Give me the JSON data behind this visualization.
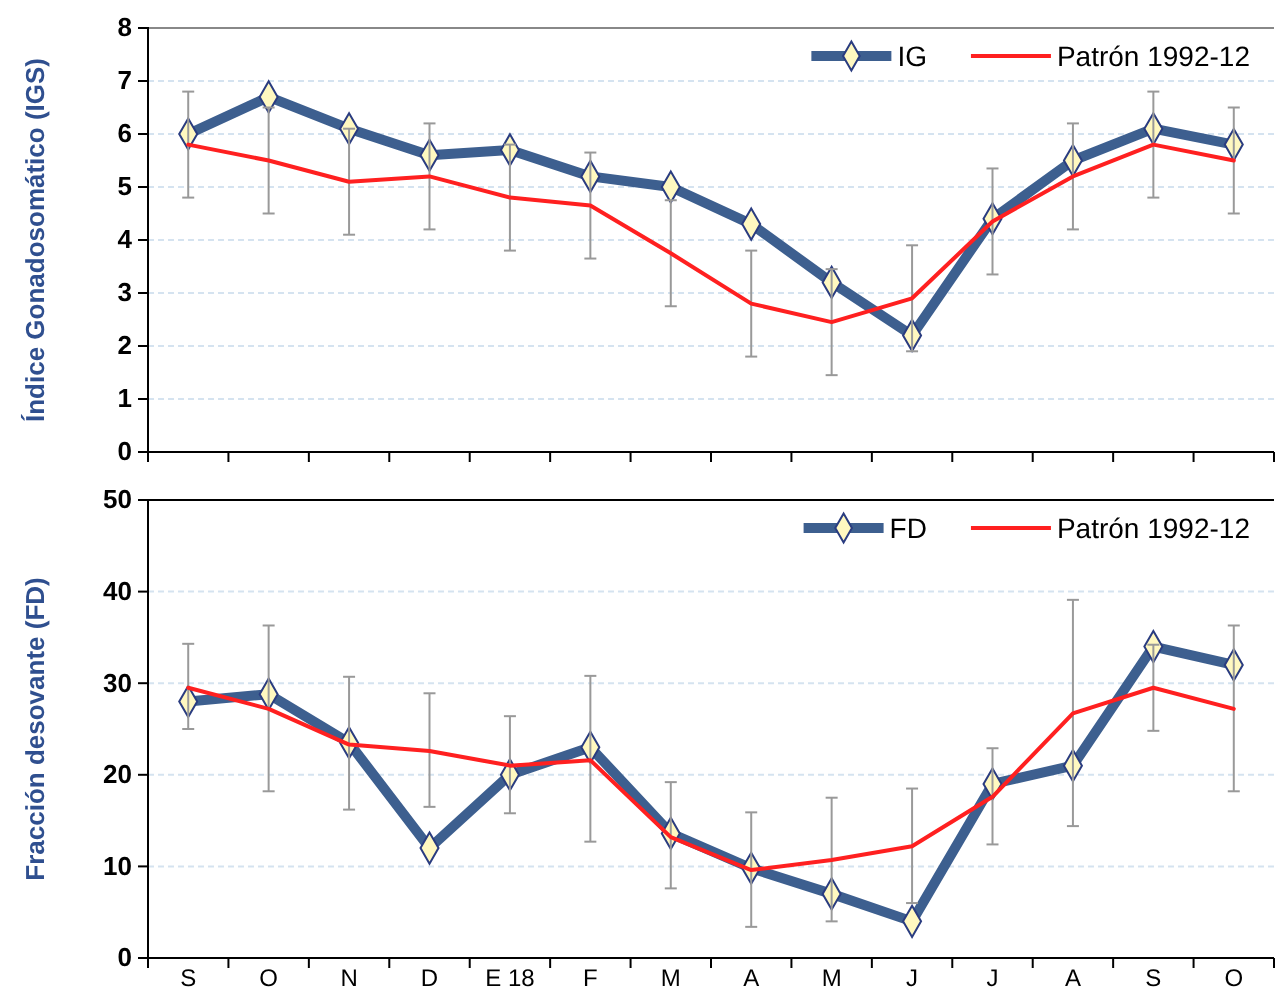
{
  "chart_data": [
    {
      "type": "line",
      "ylabel": "Índice Gonadosomático (IGS)",
      "categories": [
        null,
        null,
        null,
        null,
        null,
        null,
        null,
        null,
        null,
        null,
        null,
        null,
        null,
        null
      ],
      "ylim": [
        0,
        8
      ],
      "yticks": [
        0,
        1,
        2,
        3,
        4,
        5,
        6,
        7,
        8
      ],
      "grid": "y",
      "legend": "top right",
      "tick_labels": "y",
      "series": [
        {
          "name": "IG",
          "color": "#3d5f8f",
          "marker": "diamond",
          "values": [
            6.0,
            6.7,
            6.1,
            5.6,
            5.7,
            5.2,
            5.0,
            4.3,
            3.2,
            2.2,
            4.4,
            5.5,
            6.1,
            5.8
          ]
        },
        {
          "name": "Patrón 1992-12",
          "color": "#ff2020",
          "marker": "none",
          "values": [
            5.8,
            5.5,
            5.1,
            5.2,
            4.8,
            4.65,
            3.75,
            2.8,
            2.45,
            2.9,
            4.35,
            5.2,
            5.8,
            5.5
          ],
          "errors": [
            1,
            1,
            1,
            1,
            1,
            1,
            1,
            1,
            1,
            1,
            1,
            1,
            1,
            1
          ]
        }
      ]
    },
    {
      "type": "line",
      "ylabel": "Fracción desovante (FD)",
      "categories": [
        "S",
        "O",
        "N",
        "D",
        "E 18",
        "F",
        "M",
        "A",
        "M",
        "J",
        "J",
        "A",
        "S",
        "O"
      ],
      "ylim": [
        0,
        50
      ],
      "yticks": [
        0,
        10,
        20,
        30,
        40,
        50
      ],
      "grid": "y",
      "legend": "top right",
      "series": [
        {
          "name": "FD",
          "color": "#3d5f8f",
          "marker": "diamond",
          "values": [
            28,
            28.8,
            23.5,
            12,
            20,
            23,
            13.6,
            9.8,
            7,
            4,
            19,
            21,
            34,
            32
          ]
        },
        {
          "name": "Patrón 1992-12",
          "color": "#ff2020",
          "marker": "none",
          "values": [
            29.5,
            27.2,
            23.3,
            22.6,
            21,
            21.6,
            13.2,
            9.6,
            10.7,
            12.2,
            17.6,
            26.7,
            29.5,
            27.2
          ],
          "errors": [
            [
              25,
              34.3
            ],
            [
              18.2,
              36.3
            ],
            [
              16.2,
              30.7
            ],
            [
              16.5,
              28.9
            ],
            [
              15.8,
              26.4
            ],
            [
              12.7,
              30.8
            ],
            [
              7.6,
              19.2
            ],
            [
              3.4,
              15.9
            ],
            [
              4,
              17.5
            ],
            [
              6,
              18.5
            ],
            [
              12.4,
              22.9
            ],
            [
              14.4,
              39.1
            ],
            [
              24.8,
              34.2
            ],
            [
              18.2,
              36.3
            ]
          ]
        }
      ]
    }
  ]
}
